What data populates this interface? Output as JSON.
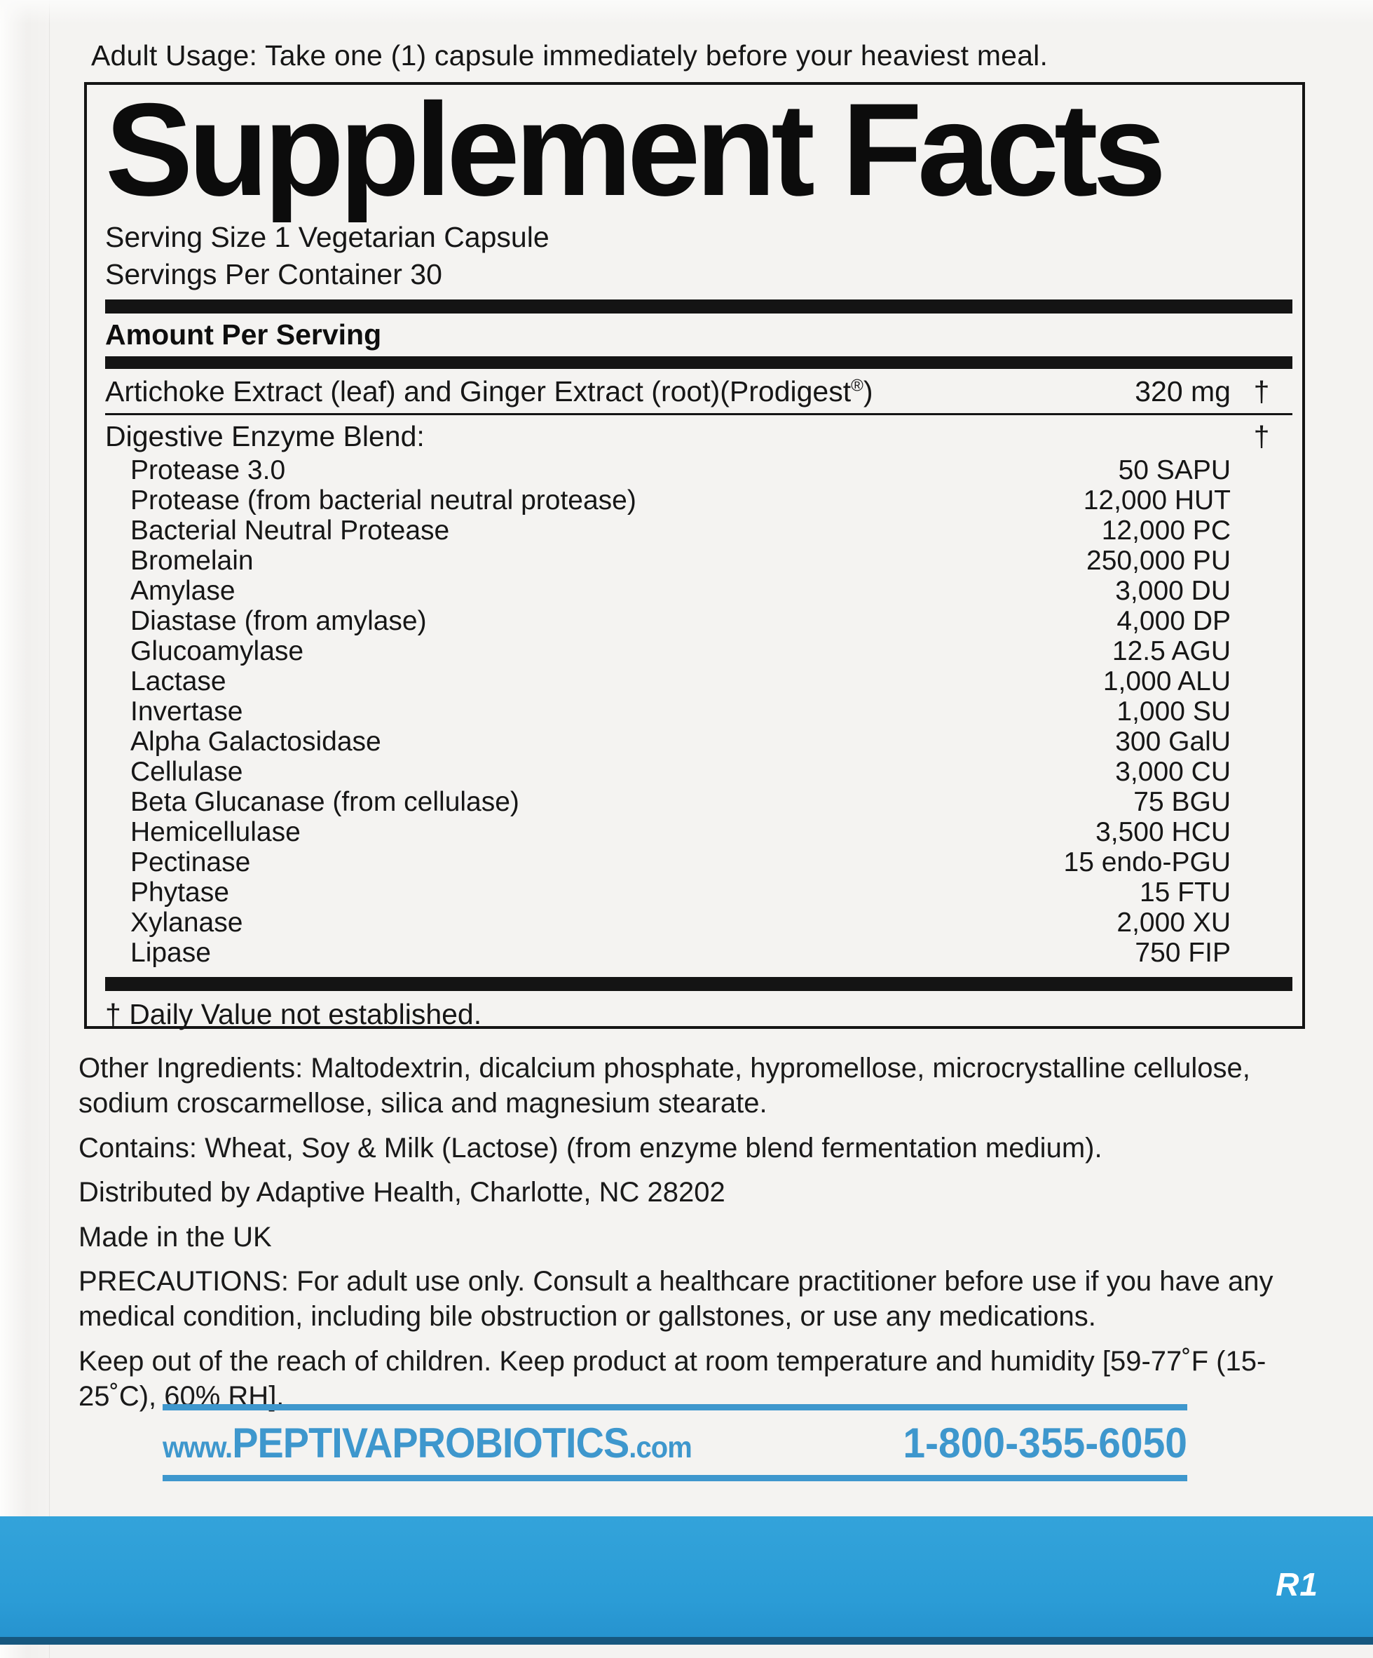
{
  "usage": "Adult Usage: Take one (1) capsule immediately before your heaviest meal.",
  "facts": {
    "title": "Supplement Facts",
    "serving_size": "Serving Size 1 Vegetarian Capsule",
    "servings_per_container": "Servings Per Container 30",
    "amount_header": "Amount Per Serving",
    "artichoke": {
      "name_pre": "Artichoke Extract (leaf) and Ginger Extract (root)(Prodigest",
      "reg_mark": "®",
      "name_post": ")",
      "amount": "320 mg",
      "dv": "†"
    },
    "blend": {
      "name": "Digestive Enzyme Blend:",
      "dv": "†"
    },
    "enzymes": [
      {
        "name": "Protease 3.0",
        "amount": "50 SAPU"
      },
      {
        "name": "Protease (from bacterial neutral protease)",
        "amount": "12,000 HUT"
      },
      {
        "name": "Bacterial Neutral Protease",
        "amount": "12,000 PC"
      },
      {
        "name": "Bromelain",
        "amount": "250,000 PU"
      },
      {
        "name": "Amylase",
        "amount": "3,000 DU"
      },
      {
        "name": "Diastase (from amylase)",
        "amount": "4,000 DP"
      },
      {
        "name": "Glucoamylase",
        "amount": "12.5 AGU"
      },
      {
        "name": "Lactase",
        "amount": "1,000 ALU"
      },
      {
        "name": "Invertase",
        "amount": "1,000 SU"
      },
      {
        "name": "Alpha Galactosidase",
        "amount": "300 GalU"
      },
      {
        "name": "Cellulase",
        "amount": "3,000 CU"
      },
      {
        "name": "Beta Glucanase (from cellulase)",
        "amount": "75 BGU"
      },
      {
        "name": "Hemicellulase",
        "amount": "3,500 HCU"
      },
      {
        "name": "Pectinase",
        "amount": "15 endo-PGU"
      },
      {
        "name": "Phytase",
        "amount": "15 FTU"
      },
      {
        "name": "Xylanase",
        "amount": "2,000 XU"
      },
      {
        "name": "Lipase",
        "amount": "750 FIP"
      }
    ],
    "footnote": "† Daily Value not established."
  },
  "other_ingredients": "Other Ingredients: Maltodextrin, dicalcium phosphate, hypromellose, microcrystalline cellulose, sodium croscarmellose, silica and magnesium stearate.",
  "contains": "Contains: Wheat, Soy & Milk (Lactose) (from enzyme blend fermentation medium).",
  "distributed_by": "Distributed by Adaptive Health, Charlotte, NC 28202",
  "made_in": "Made in the UK",
  "precautions": "PRECAUTIONS: For adult use only. Consult a healthcare practitioner before use if you have any medical condition, including bile obstruction or gallstones, or use any medications.",
  "storage": "Keep out of the reach of children. Keep product at room temperature and humidity [59-77˚F (15-25˚C), 60% RH].",
  "contact": {
    "website_www": "www.",
    "website_main": "PEPTIVAPROBIOTICS",
    "website_tld": ".com",
    "phone": "1-800-355-6050"
  },
  "revision": "R1",
  "colors": {
    "accent_blue": "#3e97cd",
    "bottom_bar_blue": "#2b9cd6",
    "bottom_bar_edge": "#17587f"
  }
}
